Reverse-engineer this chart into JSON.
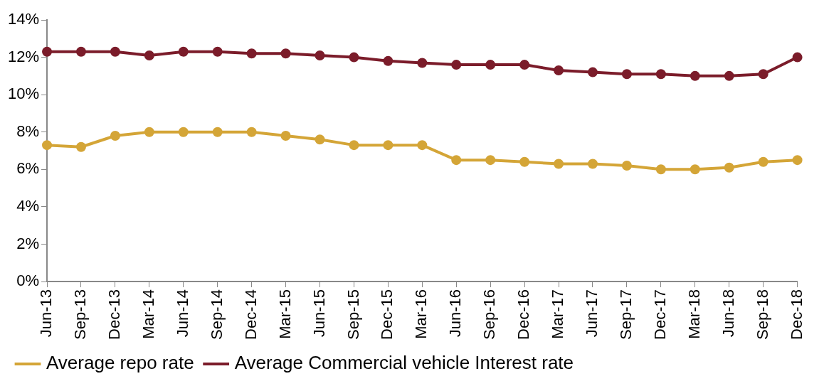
{
  "chart_data": {
    "type": "line",
    "categories": [
      "Jun-13",
      "Sep-13",
      "Dec-13",
      "Mar-14",
      "Jun-14",
      "Sep-14",
      "Dec-14",
      "Mar-15",
      "Jun-15",
      "Sep-15",
      "Dec-15",
      "Mar-16",
      "Jun-16",
      "Sep-16",
      "Dec-16",
      "Mar-17",
      "Jun-17",
      "Sep-17",
      "Dec-17",
      "Mar-18",
      "Jun-18",
      "Sep-18",
      "Dec-18"
    ],
    "series": [
      {
        "name": "Average repo rate",
        "color": "#d4a537",
        "values": [
          7.3,
          7.2,
          7.8,
          8.0,
          8.0,
          8.0,
          8.0,
          7.8,
          7.6,
          7.3,
          7.3,
          7.3,
          6.5,
          6.5,
          6.4,
          6.3,
          6.3,
          6.2,
          6.0,
          6.0,
          6.1,
          6.4,
          6.5
        ]
      },
      {
        "name": "Average Commercial vehicle Interest rate",
        "color": "#7b1c2a",
        "values": [
          12.3,
          12.3,
          12.3,
          12.1,
          12.3,
          12.3,
          12.2,
          12.2,
          12.1,
          12.0,
          11.8,
          11.7,
          11.6,
          11.6,
          11.6,
          11.3,
          11.2,
          11.1,
          11.1,
          11.0,
          11.0,
          11.1,
          12.0
        ]
      }
    ],
    "ylim": [
      0,
      14
    ],
    "yticks": [
      {
        "value": 0,
        "label": "0%"
      },
      {
        "value": 2,
        "label": "2%"
      },
      {
        "value": 4,
        "label": "4%"
      },
      {
        "value": 6,
        "label": "6%"
      },
      {
        "value": 8,
        "label": "8%"
      },
      {
        "value": 10,
        "label": "10%"
      },
      {
        "value": 12,
        "label": "12%"
      },
      {
        "value": 14,
        "label": "14%"
      }
    ],
    "grid": false,
    "legend": "bottom left",
    "marker": "circle",
    "line_style": "solid"
  }
}
